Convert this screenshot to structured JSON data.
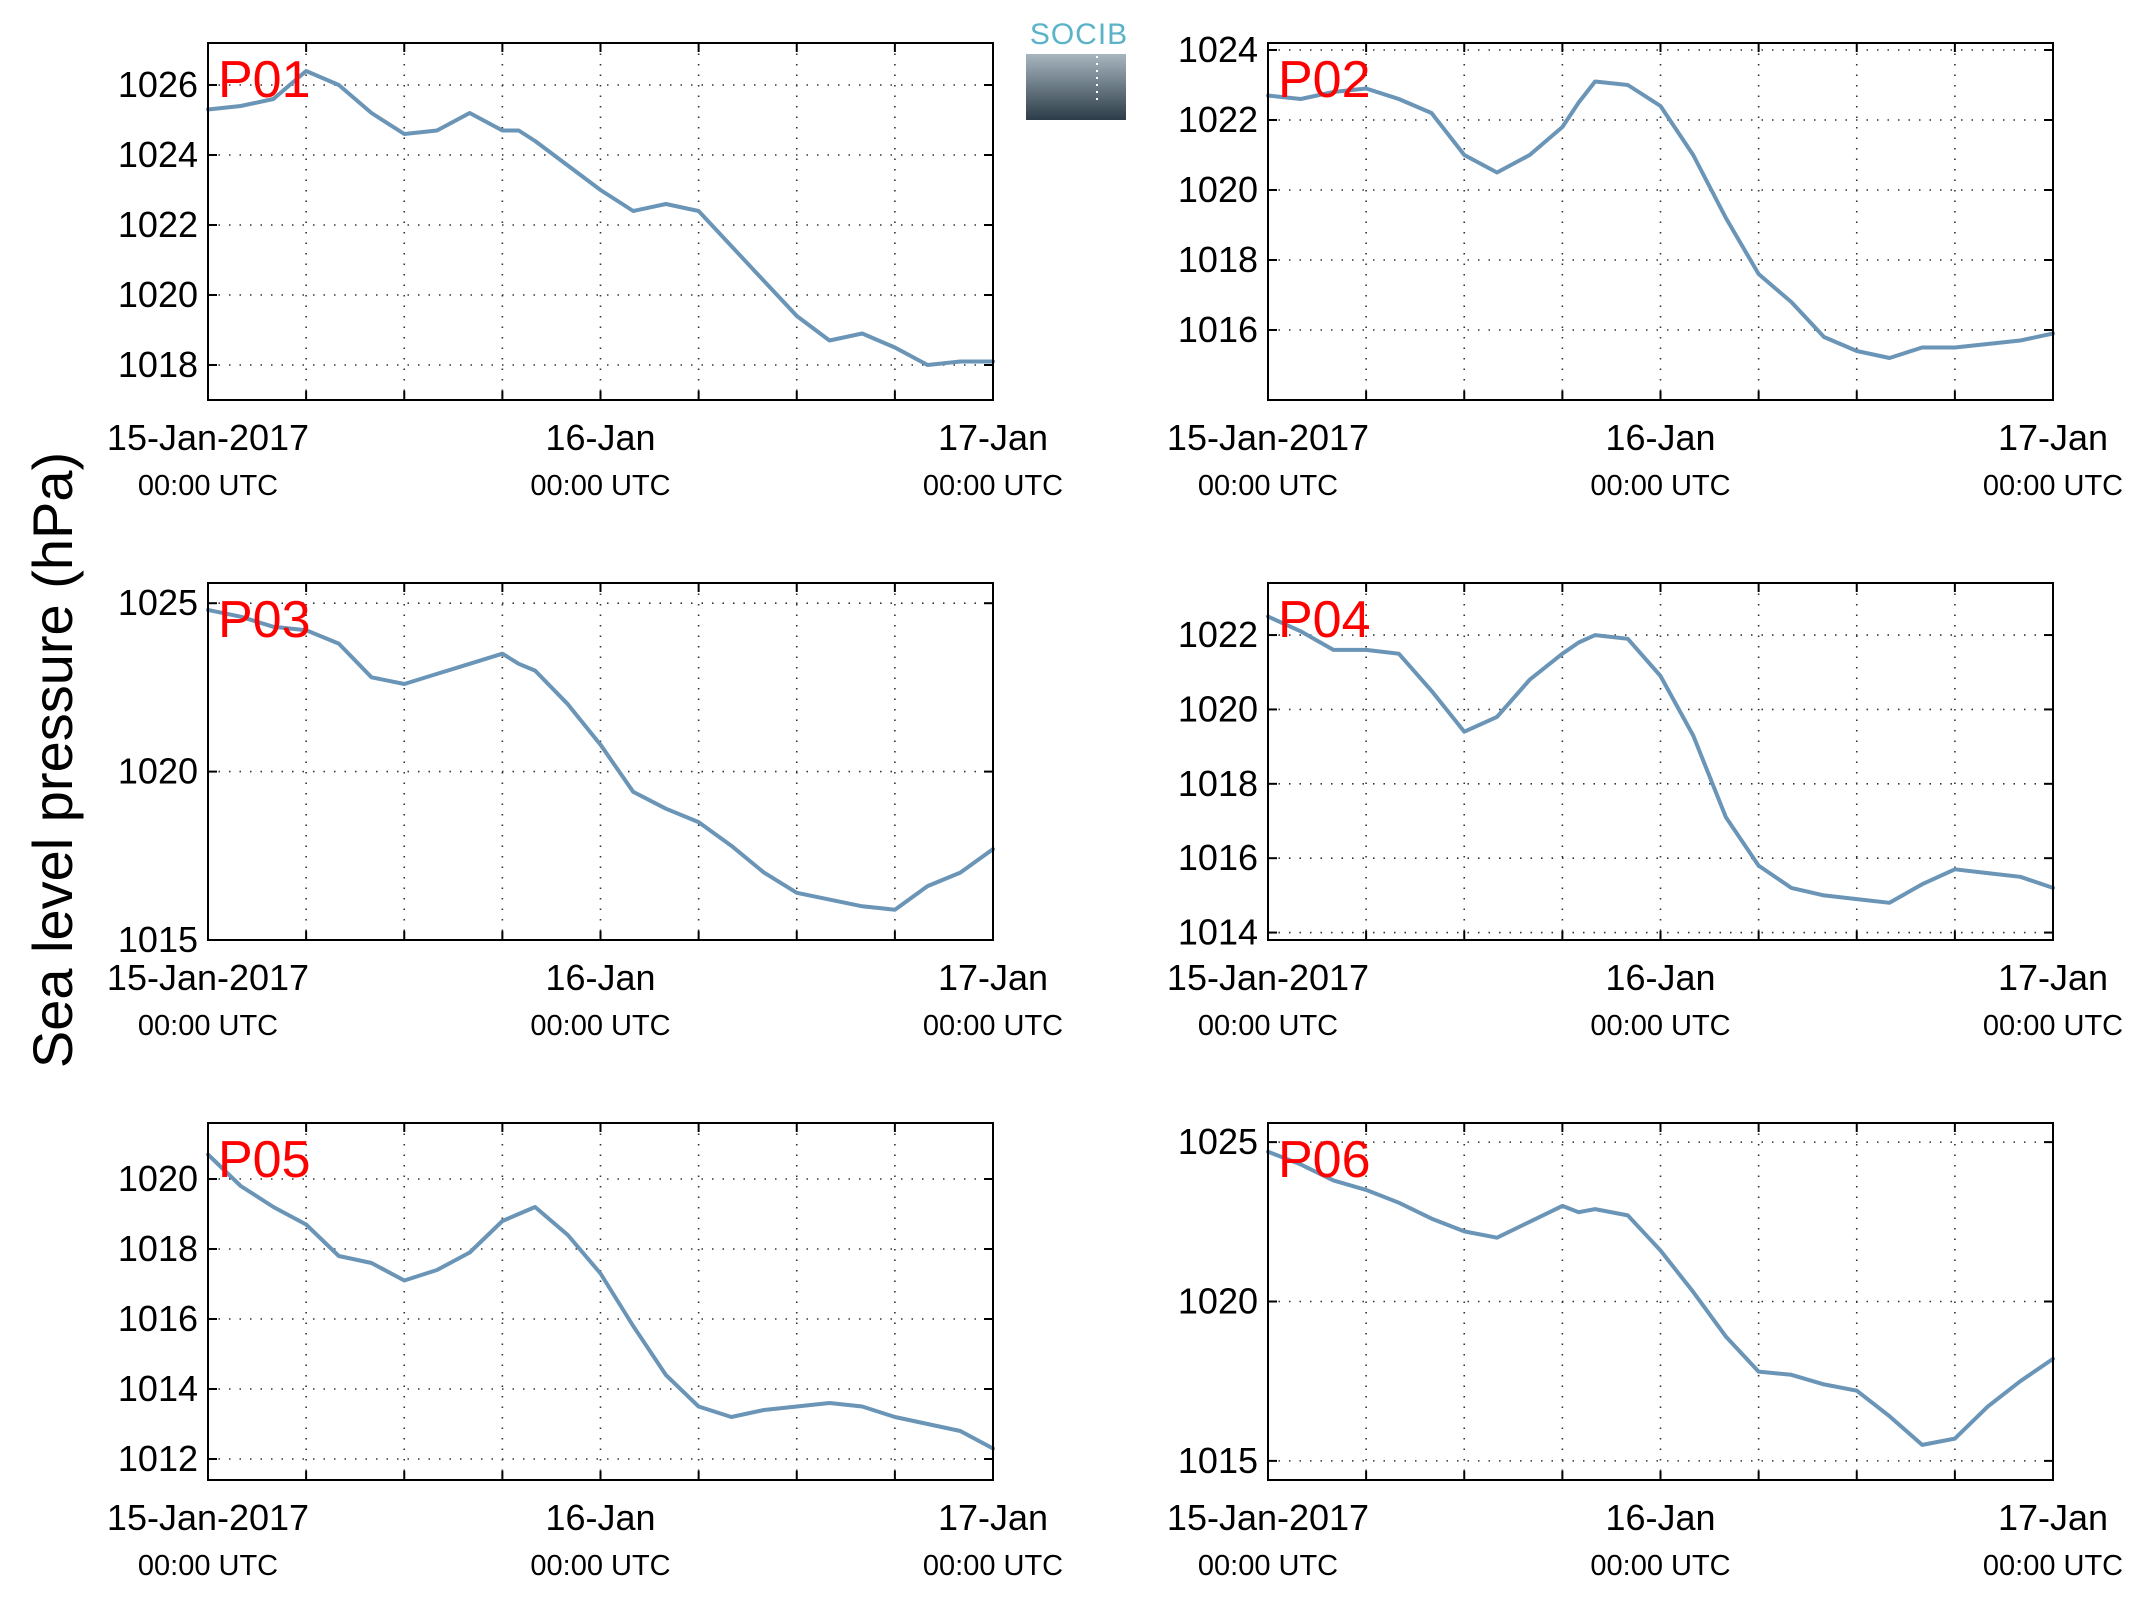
{
  "figure": {
    "ylabel": "Sea level pressure (hPa)",
    "logo_text": "SOCIB",
    "colors": {
      "line": "#6a95b7",
      "panel_label": "#ff0000",
      "logo_text": "#5ab3c7",
      "logo_top": "#a7b6bf",
      "logo_bottom": "#2c3c48"
    }
  },
  "chart_data": [
    {
      "type": "line",
      "label": "P01",
      "x_start": "15-Jan-2017 00:00 UTC",
      "x_end": "17-Jan-2017 00:00 UTC",
      "ylim": [
        1017,
        1027.2
      ],
      "yticks": [
        1018,
        1020,
        1022,
        1024,
        1026
      ],
      "xticks": [
        {
          "main": "15-Jan-2017",
          "sub": "00:00 UTC"
        },
        {
          "main": "16-Jan",
          "sub": "00:00 UTC"
        },
        {
          "main": "17-Jan",
          "sub": "00:00 UTC"
        }
      ],
      "grid": true,
      "series": [
        {
          "x_hours": [
            0,
            2,
            4,
            6,
            8,
            10,
            12,
            14,
            16,
            18,
            19,
            20,
            22,
            24,
            26,
            28,
            30,
            32,
            34,
            36,
            38,
            40,
            42,
            44,
            46,
            48
          ],
          "values": [
            1025.3,
            1025.4,
            1025.6,
            1026.4,
            1026.0,
            1025.2,
            1024.6,
            1024.7,
            1025.2,
            1024.7,
            1024.7,
            1024.4,
            1023.7,
            1023.0,
            1022.4,
            1022.6,
            1022.4,
            1021.4,
            1020.4,
            1019.4,
            1018.7,
            1018.9,
            1018.5,
            1018.0,
            1018.1,
            1018.1
          ]
        }
      ]
    },
    {
      "type": "line",
      "label": "P02",
      "x_start": "15-Jan-2017 00:00 UTC",
      "x_end": "17-Jan-2017 00:00 UTC",
      "ylim": [
        1014,
        1024.2
      ],
      "yticks": [
        1016,
        1018,
        1020,
        1022,
        1024
      ],
      "xticks": [
        {
          "main": "15-Jan-2017",
          "sub": "00:00 UTC"
        },
        {
          "main": "16-Jan",
          "sub": "00:00 UTC"
        },
        {
          "main": "17-Jan",
          "sub": "00:00 UTC"
        }
      ],
      "grid": true,
      "series": [
        {
          "x_hours": [
            0,
            2,
            4,
            6,
            8,
            10,
            12,
            14,
            16,
            18,
            19,
            20,
            22,
            24,
            26,
            28,
            30,
            32,
            34,
            36,
            38,
            40,
            42,
            44,
            46,
            48
          ],
          "values": [
            1022.7,
            1022.6,
            1022.8,
            1022.9,
            1022.6,
            1022.2,
            1021.0,
            1020.5,
            1021.0,
            1021.8,
            1022.5,
            1023.1,
            1023.0,
            1022.4,
            1021.0,
            1019.2,
            1017.6,
            1016.8,
            1015.8,
            1015.4,
            1015.2,
            1015.5,
            1015.5,
            1015.6,
            1015.7,
            1015.9
          ]
        }
      ]
    },
    {
      "type": "line",
      "label": "P03",
      "x_start": "15-Jan-2017 00:00 UTC",
      "x_end": "17-Jan-2017 00:00 UTC",
      "ylim": [
        1015,
        1025.6
      ],
      "yticks": [
        1015,
        1020,
        1025
      ],
      "xticks": [
        {
          "main": "15-Jan-2017",
          "sub": "00:00 UTC"
        },
        {
          "main": "16-Jan",
          "sub": "00:00 UTC"
        },
        {
          "main": "17-Jan",
          "sub": "00:00 UTC"
        }
      ],
      "grid": true,
      "series": [
        {
          "x_hours": [
            0,
            2,
            4,
            6,
            8,
            10,
            12,
            14,
            16,
            18,
            19,
            20,
            22,
            24,
            26,
            28,
            30,
            32,
            34,
            36,
            38,
            40,
            42,
            44,
            46,
            48
          ],
          "values": [
            1024.8,
            1024.6,
            1024.3,
            1024.2,
            1023.8,
            1022.8,
            1022.6,
            1022.9,
            1023.2,
            1023.5,
            1023.2,
            1023.0,
            1022.0,
            1020.8,
            1019.4,
            1018.9,
            1018.5,
            1017.8,
            1017.0,
            1016.4,
            1016.2,
            1016.0,
            1015.9,
            1016.6,
            1017.0,
            1017.7
          ]
        }
      ]
    },
    {
      "type": "line",
      "label": "P04",
      "x_start": "15-Jan-2017 00:00 UTC",
      "x_end": "17-Jan-2017 00:00 UTC",
      "ylim": [
        1013.8,
        1023.4
      ],
      "yticks": [
        1014,
        1016,
        1018,
        1020,
        1022
      ],
      "xticks": [
        {
          "main": "15-Jan-2017",
          "sub": "00:00 UTC"
        },
        {
          "main": "16-Jan",
          "sub": "00:00 UTC"
        },
        {
          "main": "17-Jan",
          "sub": "00:00 UTC"
        }
      ],
      "grid": true,
      "series": [
        {
          "x_hours": [
            0,
            2,
            4,
            6,
            8,
            10,
            12,
            14,
            16,
            18,
            19,
            20,
            22,
            24,
            26,
            28,
            30,
            32,
            34,
            36,
            38,
            40,
            42,
            44,
            46,
            48
          ],
          "values": [
            1022.5,
            1022.1,
            1021.6,
            1021.6,
            1021.5,
            1020.5,
            1019.4,
            1019.8,
            1020.8,
            1021.5,
            1021.8,
            1022.0,
            1021.9,
            1020.9,
            1019.3,
            1017.1,
            1015.8,
            1015.2,
            1015.0,
            1014.9,
            1014.8,
            1015.3,
            1015.7,
            1015.6,
            1015.5,
            1015.2
          ]
        }
      ]
    },
    {
      "type": "line",
      "label": "P05",
      "x_start": "15-Jan-2017 00:00 UTC",
      "x_end": "17-Jan-2017 00:00 UTC",
      "ylim": [
        1011.4,
        1021.6
      ],
      "yticks": [
        1012,
        1014,
        1016,
        1018,
        1020
      ],
      "xticks": [
        {
          "main": "15-Jan-2017",
          "sub": "00:00 UTC"
        },
        {
          "main": "16-Jan",
          "sub": "00:00 UTC"
        },
        {
          "main": "17-Jan",
          "sub": "00:00 UTC"
        }
      ],
      "grid": true,
      "series": [
        {
          "x_hours": [
            0,
            2,
            4,
            6,
            8,
            10,
            12,
            14,
            16,
            18,
            19,
            20,
            22,
            24,
            26,
            28,
            30,
            32,
            34,
            36,
            38,
            40,
            42,
            44,
            46,
            48
          ],
          "values": [
            1020.7,
            1019.8,
            1019.2,
            1018.7,
            1017.8,
            1017.6,
            1017.1,
            1017.4,
            1017.9,
            1018.8,
            1019.0,
            1019.2,
            1018.4,
            1017.3,
            1015.8,
            1014.4,
            1013.5,
            1013.2,
            1013.4,
            1013.5,
            1013.6,
            1013.5,
            1013.2,
            1013.0,
            1012.8,
            1012.3
          ]
        }
      ]
    },
    {
      "type": "line",
      "label": "P06",
      "x_start": "15-Jan-2017 00:00 UTC",
      "x_end": "17-Jan-2017 00:00 UTC",
      "ylim": [
        1014.4,
        1025.6
      ],
      "yticks": [
        1015,
        1020,
        1025
      ],
      "xticks": [
        {
          "main": "15-Jan-2017",
          "sub": "00:00 UTC"
        },
        {
          "main": "16-Jan",
          "sub": "00:00 UTC"
        },
        {
          "main": "17-Jan",
          "sub": "00:00 UTC"
        }
      ],
      "grid": true,
      "series": [
        {
          "x_hours": [
            0,
            2,
            4,
            6,
            8,
            10,
            12,
            14,
            16,
            18,
            19,
            20,
            22,
            24,
            26,
            28,
            30,
            32,
            34,
            36,
            38,
            40,
            42,
            44,
            46,
            48
          ],
          "values": [
            1024.7,
            1024.3,
            1023.8,
            1023.5,
            1023.1,
            1022.6,
            1022.2,
            1022.0,
            1022.5,
            1023.0,
            1022.8,
            1022.9,
            1022.7,
            1021.6,
            1020.3,
            1018.9,
            1017.8,
            1017.7,
            1017.4,
            1017.2,
            1016.4,
            1015.5,
            1015.7,
            1016.7,
            1017.5,
            1018.2
          ]
        }
      ]
    }
  ]
}
